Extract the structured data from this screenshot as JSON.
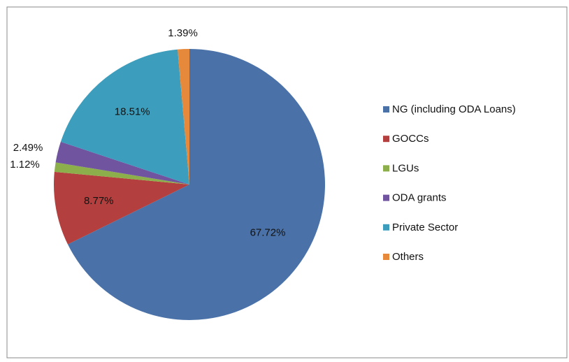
{
  "chart_data": {
    "type": "pie",
    "categories": [
      "NG (including ODA Loans)",
      "GOCCs",
      "LGUs",
      "ODA grants",
      "Private Sector",
      "Others"
    ],
    "values": [
      67.72,
      8.77,
      1.12,
      2.49,
      18.51,
      1.39
    ],
    "value_labels": [
      "67.72%",
      "8.77%",
      "1.12%",
      "2.49%",
      "18.51%",
      "1.39%"
    ],
    "colors": [
      "#4a72a8",
      "#b3403e",
      "#8caf4c",
      "#7054a0",
      "#3c9ebc",
      "#e6893a"
    ],
    "legend": "right"
  }
}
